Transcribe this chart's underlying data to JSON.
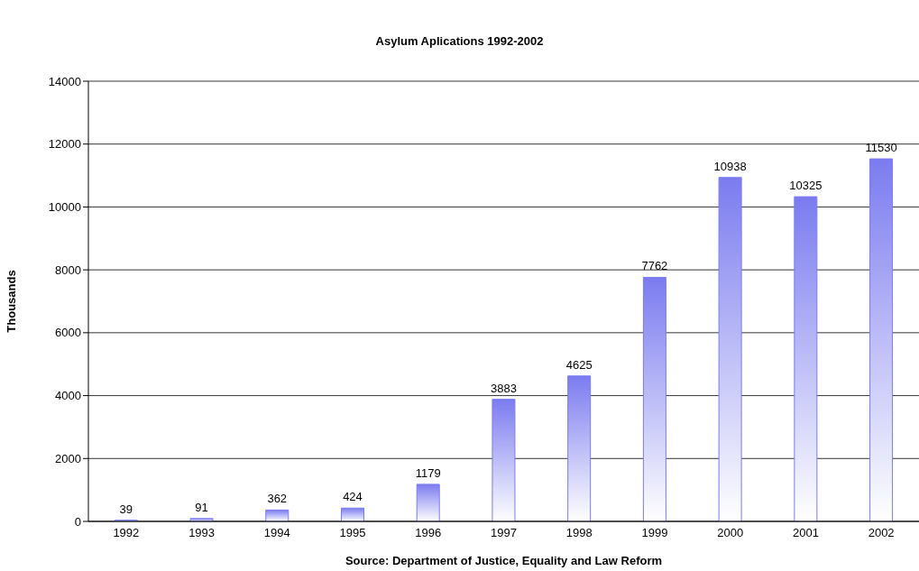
{
  "chart_data": {
    "type": "bar",
    "title": "Asylum Aplications 1992-2002",
    "ylabel": "Thousands",
    "categories": [
      "1992",
      "1993",
      "1994",
      "1995",
      "1996",
      "1997",
      "1998",
      "1999",
      "2000",
      "2001",
      "2002"
    ],
    "values": [
      39,
      91,
      362,
      424,
      1179,
      3883,
      4625,
      7762,
      10938,
      10325,
      11530
    ],
    "color": "#7b7bf0",
    "ylim": [
      0,
      14000
    ],
    "yticks": [
      0,
      2000,
      4000,
      6000,
      8000,
      10000,
      12000,
      14000
    ],
    "grid": "y",
    "data_labels": true,
    "annotations": [
      "Source: Department of Justice, Equality and Law Reform"
    ]
  }
}
